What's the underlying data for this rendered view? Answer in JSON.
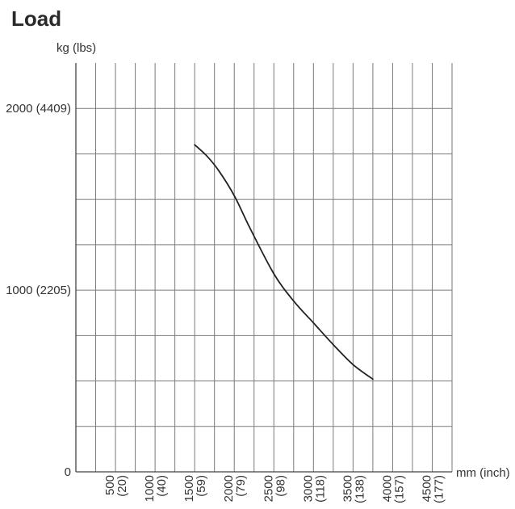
{
  "chart_data": {
    "type": "line",
    "title": "Load",
    "ylabel": "kg (lbs)",
    "xlabel": "mm (inch)",
    "xlim": [
      0,
      4750
    ],
    "ylim": [
      0,
      2250
    ],
    "x_grid_step": 250,
    "y_grid_step": 250,
    "grid": true,
    "x_ticks": [
      {
        "value": 500,
        "label": "500",
        "sublabel": "(20)"
      },
      {
        "value": 1000,
        "label": "1000",
        "sublabel": "(40)"
      },
      {
        "value": 1500,
        "label": "1500",
        "sublabel": "(59)"
      },
      {
        "value": 2000,
        "label": "2000",
        "sublabel": "(79)"
      },
      {
        "value": 2500,
        "label": "2500",
        "sublabel": "(98)"
      },
      {
        "value": 3000,
        "label": "3000",
        "sublabel": "(118)"
      },
      {
        "value": 3500,
        "label": "3500",
        "sublabel": "(138)"
      },
      {
        "value": 4000,
        "label": "4000",
        "sublabel": "(157)"
      },
      {
        "value": 4500,
        "label": "4500",
        "sublabel": "(177)"
      }
    ],
    "y_ticks": [
      {
        "value": 0,
        "label": "0"
      },
      {
        "value": 1000,
        "label": "1000 (2205)"
      },
      {
        "value": 2000,
        "label": "2000 (4409)"
      }
    ],
    "series": [
      {
        "color": "#222222",
        "points": [
          {
            "x": 1500,
            "y": 1800
          },
          {
            "x": 1650,
            "y": 1740
          },
          {
            "x": 1800,
            "y": 1660
          },
          {
            "x": 2000,
            "y": 1520
          },
          {
            "x": 2200,
            "y": 1340
          },
          {
            "x": 2500,
            "y": 1090
          },
          {
            "x": 2750,
            "y": 940
          },
          {
            "x": 3000,
            "y": 820
          },
          {
            "x": 3250,
            "y": 700
          },
          {
            "x": 3500,
            "y": 590
          },
          {
            "x": 3750,
            "y": 510
          }
        ]
      }
    ]
  }
}
